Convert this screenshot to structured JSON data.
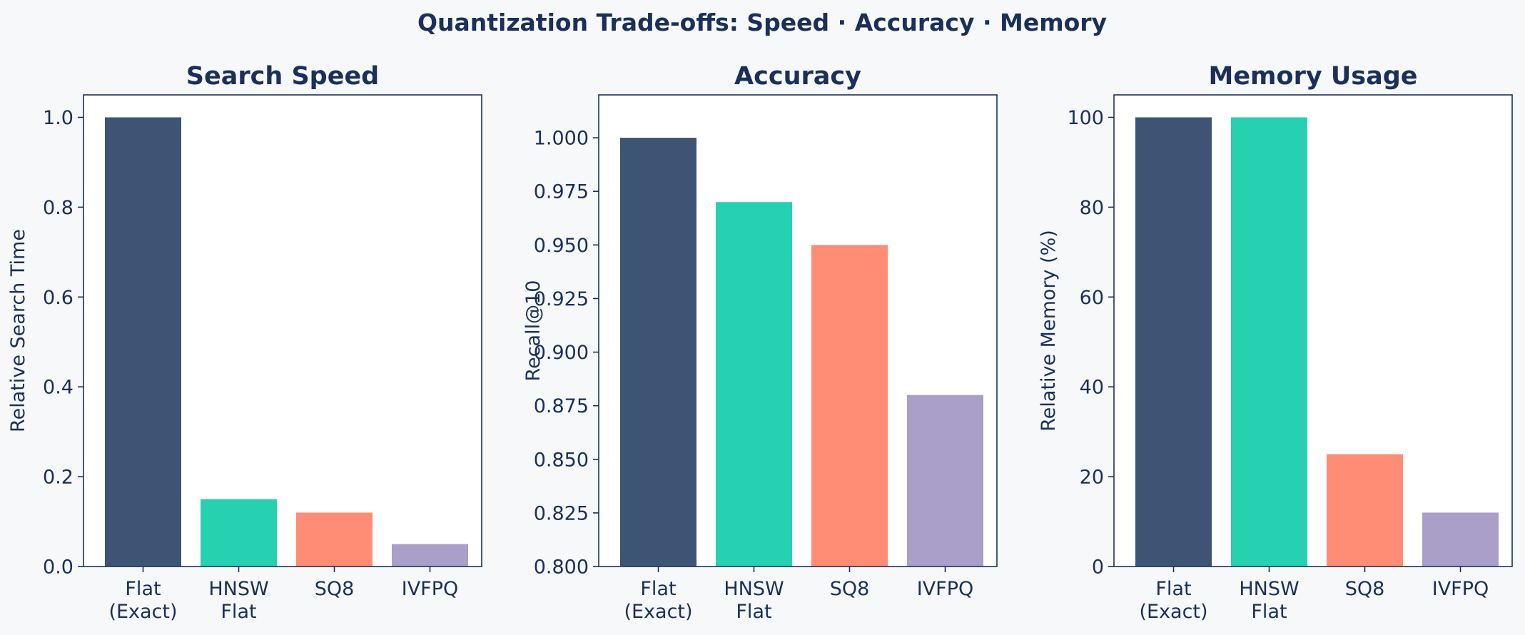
{
  "figure_title": "Quantization Trade-offs: Speed · Accuracy · Memory",
  "colors": {
    "text": "#1b3059",
    "frame": "#1b3059",
    "background": "#f6f8fa",
    "plot_background": "#ffffff",
    "bars": [
      "#3e5475",
      "#26d1b2",
      "#ff8c75",
      "#a99fc8"
    ]
  },
  "chart_data": [
    {
      "type": "bar",
      "title": "Search Speed",
      "xlabel": "",
      "ylabel": "Relative Search Time",
      "categories": [
        [
          "Flat",
          "(Exact)"
        ],
        [
          "HNSW",
          "Flat"
        ],
        [
          "SQ8"
        ],
        [
          "IVFPQ"
        ]
      ],
      "values": [
        1.0,
        0.15,
        0.12,
        0.05
      ],
      "ylim": [
        0,
        1.05
      ],
      "yticks": [
        0.0,
        0.2,
        0.4,
        0.6,
        0.8,
        1.0
      ],
      "ytick_labels": [
        "0.0",
        "0.2",
        "0.4",
        "0.6",
        "0.8",
        "1.0"
      ],
      "grid": false,
      "legend": "none"
    },
    {
      "type": "bar",
      "title": "Accuracy",
      "xlabel": "",
      "ylabel": "Recall@10",
      "categories": [
        [
          "Flat",
          "(Exact)"
        ],
        [
          "HNSW",
          "Flat"
        ],
        [
          "SQ8"
        ],
        [
          "IVFPQ"
        ]
      ],
      "values": [
        1.0,
        0.97,
        0.95,
        0.88
      ],
      "ylim": [
        0.8,
        1.02
      ],
      "yticks": [
        0.8,
        0.825,
        0.85,
        0.875,
        0.9,
        0.925,
        0.95,
        0.975,
        1.0
      ],
      "ytick_labels": [
        "0.800",
        "0.825",
        "0.850",
        "0.875",
        "0.900",
        "0.925",
        "0.950",
        "0.975",
        "1.000"
      ],
      "grid": false,
      "legend": "none"
    },
    {
      "type": "bar",
      "title": "Memory Usage",
      "xlabel": "",
      "ylabel": "Relative Memory (%)",
      "categories": [
        [
          "Flat",
          "(Exact)"
        ],
        [
          "HNSW",
          "Flat"
        ],
        [
          "SQ8"
        ],
        [
          "IVFPQ"
        ]
      ],
      "values": [
        100,
        100,
        25,
        12
      ],
      "ylim": [
        0,
        105
      ],
      "yticks": [
        0,
        20,
        40,
        60,
        80,
        100
      ],
      "ytick_labels": [
        "0",
        "20",
        "40",
        "60",
        "80",
        "100"
      ],
      "grid": false,
      "legend": "none"
    }
  ]
}
